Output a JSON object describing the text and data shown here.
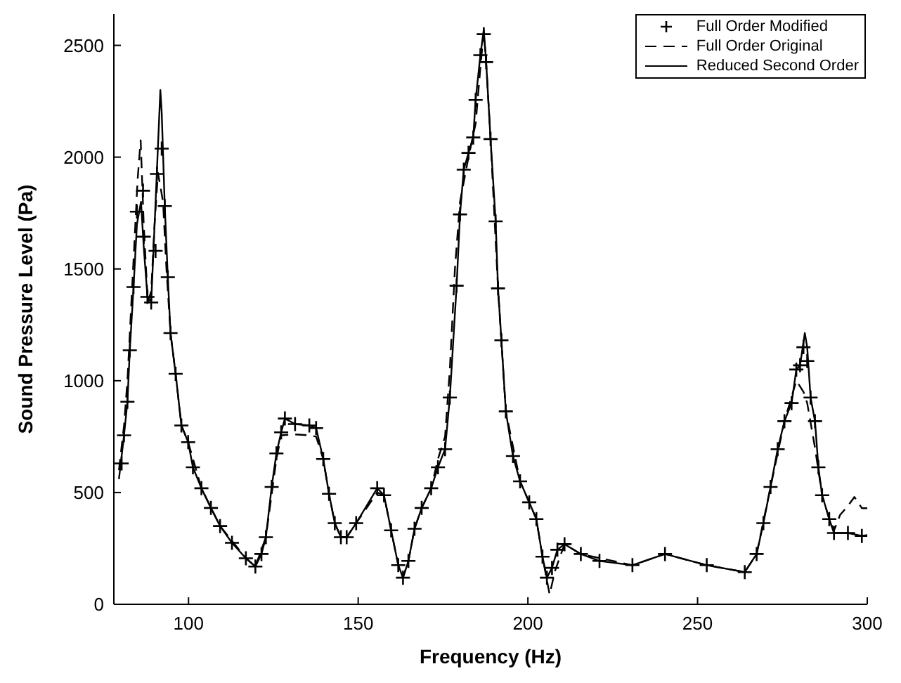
{
  "chart_data": {
    "type": "line",
    "xlabel": "Frequency (Hz)",
    "ylabel": "Sound Pressure Level (Pa)",
    "xlim": [
      78,
      300
    ],
    "xticks": [
      100,
      150,
      200,
      250,
      300
    ],
    "ylim": [
      0,
      2640
    ],
    "yticks": [
      0,
      500,
      1000,
      1500,
      2000,
      2500
    ],
    "grid": false,
    "legend": "top right",
    "series": [
      {
        "name": "Full Order Modified",
        "type": "scatter",
        "marker": "cross",
        "color": "#000000",
        "x": [
          80.3,
          81.0,
          82.0,
          82.7,
          83.8,
          84.8,
          86.6,
          86.8,
          87.9,
          89.0,
          90.3,
          90.7,
          92.1,
          93.0,
          93.9,
          94.7,
          96.2,
          97.9,
          99.9,
          101.3,
          103.8,
          106.6,
          109.3,
          112.8,
          116.9,
          119.7,
          121.5,
          122.8,
          124.5,
          125.9,
          127.3,
          128.4,
          131.4,
          135.6,
          137.6,
          139.7,
          141.4,
          143.1,
          144.9,
          146.6,
          149.4,
          155.6,
          157.6,
          159.7,
          161.8,
          163.2,
          164.8,
          166.6,
          168.7,
          171.5,
          173.5,
          175.6,
          177.0,
          179.0,
          180.0,
          181.1,
          182.5,
          183.9,
          184.6,
          186.0,
          187.0,
          187.7,
          189.0,
          190.5,
          191.2,
          192.2,
          193.5,
          195.6,
          197.7,
          200.4,
          202.5,
          204.3,
          205.6,
          207.1,
          208.7,
          210.8,
          215.6,
          221.1,
          230.8,
          240.4,
          252.7,
          263.9,
          267.4,
          269.4,
          271.5,
          273.6,
          275.6,
          277.7,
          279.1,
          280.2,
          281.2,
          282.3,
          283.3,
          284.6,
          285.6,
          286.7,
          288.8,
          290.2,
          294.3,
          298.4
        ],
        "values": [
          630,
          756,
          906,
          1136,
          1419,
          1756,
          1850,
          1644,
          1375,
          1350,
          1581,
          1925,
          2038,
          1781,
          1463,
          1213,
          1031,
          800,
          725,
          613,
          519,
          431,
          350,
          275,
          206,
          169,
          225,
          300,
          525,
          675,
          769,
          831,
          806,
          800,
          788,
          650,
          494,
          363,
          300,
          300,
          363,
          519,
          488,
          331,
          175,
          119,
          194,
          338,
          431,
          519,
          613,
          694,
          925,
          1425,
          1744,
          1944,
          2019,
          2088,
          2256,
          2456,
          2550,
          2425,
          2081,
          1713,
          1413,
          1181,
          863,
          663,
          550,
          456,
          381,
          213,
          119,
          163,
          244,
          269,
          225,
          194,
          175,
          225,
          175,
          144,
          225,
          363,
          525,
          694,
          819,
          900,
          1050,
          1069,
          1150,
          1088,
          925,
          819,
          613,
          488,
          381,
          319,
          319,
          306
        ]
      },
      {
        "name": "Full Order Original",
        "line_style": "dashed",
        "marker": "none",
        "color": "#000000",
        "x": [
          79.5,
          81.0,
          82.0,
          83.0,
          84.0,
          85.0,
          85.9,
          86.8,
          88.0,
          89.0,
          90.0,
          91.0,
          92.5,
          93.5,
          94.7,
          96.2,
          97.9,
          99.9,
          103.8,
          109.3,
          116.9,
          119.7,
          122.8,
          125.9,
          127.3,
          131.4,
          135.6,
          137.6,
          139.7,
          141.4,
          143.1,
          144.9,
          146.6,
          149.4,
          155.6,
          157.6,
          159.7,
          161.8,
          163.2,
          164.8,
          166.6,
          168.7,
          171.5,
          173.5,
          175.6,
          177.0,
          178.5,
          180.0,
          182.5,
          184.6,
          186.0,
          187.0,
          187.7,
          189.0,
          191.2,
          193.5,
          197.7,
          202.5,
          204.3,
          206.4,
          208.0,
          210.8,
          215.6,
          230.8,
          240.4,
          252.7,
          263.9,
          267.4,
          271.5,
          275.6,
          279.1,
          281.2,
          282.3,
          284.6,
          286.7,
          288.8,
          290.2,
          292.0,
          294.3,
          296.2,
          298.4,
          300.0
        ],
        "values": [
          600,
          800,
          1000,
          1300,
          1600,
          1900,
          2075,
          1700,
          1350,
          1400,
          1700,
          1930,
          1800,
          1500,
          1213,
          1031,
          800,
          725,
          519,
          350,
          206,
          169,
          300,
          650,
          756,
          760,
          756,
          750,
          650,
          494,
          363,
          300,
          300,
          363,
          500,
          488,
          331,
          175,
          119,
          194,
          338,
          431,
          519,
          650,
          750,
          1050,
          1500,
          1800,
          2000,
          2150,
          2400,
          2560,
          2425,
          2081,
          1413,
          863,
          550,
          381,
          213,
          44,
          150,
          269,
          225,
          175,
          225,
          175,
          144,
          225,
          525,
          819,
          1000,
          950,
          900,
          700,
          488,
          381,
          330,
          400,
          440,
          480,
          430,
          430
        ]
      },
      {
        "name": "Reduced Second Order",
        "line_style": "solid",
        "marker": "none",
        "color": "#000000",
        "x": [
          79.5,
          81.0,
          82.0,
          82.7,
          83.8,
          84.8,
          86.0,
          86.8,
          87.9,
          89.0,
          90.3,
          91.7,
          92.1,
          93.0,
          93.9,
          94.7,
          96.2,
          97.9,
          99.9,
          101.3,
          103.8,
          106.6,
          109.3,
          112.8,
          116.9,
          119.7,
          121.5,
          122.8,
          124.5,
          125.9,
          127.3,
          128.4,
          131.4,
          135.6,
          137.6,
          139.7,
          141.4,
          143.1,
          144.9,
          146.6,
          149.4,
          155.6,
          157.6,
          159.7,
          161.8,
          163.2,
          164.8,
          166.6,
          168.7,
          171.5,
          173.5,
          175.6,
          177.0,
          179.0,
          180.0,
          181.1,
          182.5,
          183.9,
          184.6,
          186.0,
          187.0,
          187.7,
          189.0,
          190.5,
          191.2,
          192.2,
          193.5,
          195.6,
          197.7,
          200.4,
          202.5,
          204.3,
          205.6,
          207.1,
          208.7,
          210.8,
          215.6,
          221.1,
          230.8,
          240.4,
          252.7,
          263.9,
          267.4,
          269.4,
          271.5,
          273.6,
          275.6,
          277.7,
          279.1,
          280.2,
          281.6,
          282.3,
          283.3,
          284.6,
          285.6,
          286.7,
          288.8,
          290.2,
          294.3,
          298.4,
          300.0
        ],
        "values": [
          560,
          756,
          906,
          1136,
          1419,
          1700,
          1800,
          1600,
          1375,
          1350,
          1800,
          2300,
          2200,
          1781,
          1463,
          1213,
          1031,
          800,
          725,
          613,
          519,
          431,
          350,
          275,
          206,
          169,
          225,
          300,
          525,
          675,
          769,
          831,
          806,
          800,
          788,
          650,
          494,
          363,
          300,
          300,
          363,
          519,
          488,
          331,
          175,
          119,
          194,
          338,
          431,
          519,
          613,
          694,
          925,
          1425,
          1744,
          1944,
          2019,
          2088,
          2256,
          2456,
          2570,
          2425,
          2081,
          1713,
          1413,
          1181,
          863,
          663,
          550,
          456,
          381,
          213,
          119,
          163,
          244,
          269,
          225,
          194,
          175,
          225,
          175,
          144,
          225,
          363,
          525,
          694,
          819,
          900,
          1050,
          1069,
          1213,
          1150,
          925,
          819,
          613,
          488,
          381,
          319,
          319,
          306,
          310
        ]
      }
    ]
  }
}
